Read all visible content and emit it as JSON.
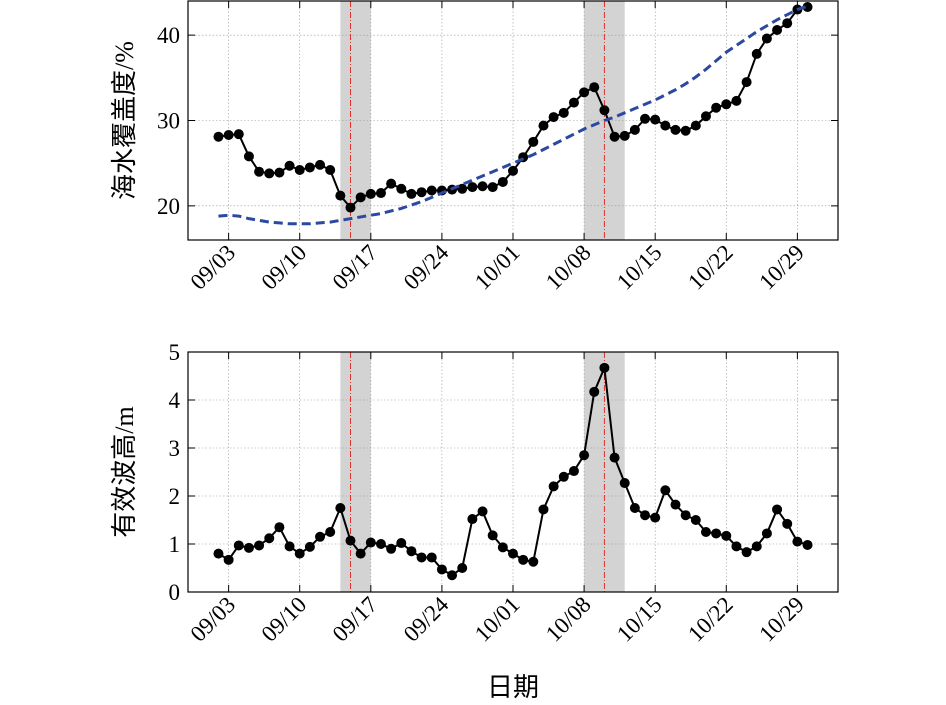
{
  "chart_data": [
    {
      "type": "line",
      "ylabel": "海水覆盖度/%",
      "x": [
        "09/02",
        "09/03",
        "09/04",
        "09/05",
        "09/06",
        "09/07",
        "09/08",
        "09/09",
        "09/10",
        "09/11",
        "09/12",
        "09/13",
        "09/14",
        "09/15",
        "09/16",
        "09/17",
        "09/18",
        "09/19",
        "09/20",
        "09/21",
        "09/22",
        "09/23",
        "09/24",
        "09/25",
        "09/26",
        "09/27",
        "09/28",
        "09/29",
        "09/30",
        "10/01",
        "10/02",
        "10/03",
        "10/04",
        "10/05",
        "10/06",
        "10/07",
        "10/08",
        "10/09",
        "10/10",
        "10/11",
        "10/12",
        "10/13",
        "10/14",
        "10/15",
        "10/16",
        "10/17",
        "10/18",
        "10/19",
        "10/20",
        "10/21",
        "10/22",
        "10/23",
        "10/24",
        "10/25",
        "10/26",
        "10/27",
        "10/28",
        "10/29",
        "10/30"
      ],
      "series": [
        {
          "color": "#000000",
          "style": "solid-marker",
          "values": [
            28.1,
            28.3,
            28.4,
            25.8,
            24.0,
            23.8,
            23.9,
            24.7,
            24.2,
            24.5,
            24.8,
            24.2,
            21.2,
            19.8,
            21.0,
            21.4,
            21.5,
            22.6,
            22.0,
            21.4,
            21.6,
            21.8,
            21.8,
            21.9,
            22.0,
            22.2,
            22.3,
            22.2,
            22.8,
            24.1,
            25.7,
            27.5,
            29.4,
            30.4,
            30.9,
            32.1,
            33.3,
            33.9,
            31.2,
            28.1,
            28.2,
            28.9,
            30.2,
            30.1,
            29.4,
            28.9,
            28.8,
            29.4,
            30.5,
            31.5,
            31.9,
            32.3,
            34.5,
            37.8,
            39.6,
            40.6,
            41.4,
            43.0,
            43.3
          ]
        },
        {
          "color": "#2c48a0",
          "style": "dashed",
          "values": [
            18.8,
            18.9,
            18.8,
            18.5,
            18.3,
            18.1,
            18.0,
            17.9,
            17.9,
            17.9,
            18.0,
            18.1,
            18.3,
            18.5,
            18.7,
            18.9,
            19.1,
            19.4,
            19.7,
            20.1,
            20.5,
            21.0,
            21.5,
            22.0,
            22.5,
            23.0,
            23.5,
            24.0,
            24.5,
            25.0,
            25.5,
            26.0,
            26.6,
            27.2,
            27.8,
            28.4,
            29.0,
            29.5,
            30.0,
            30.4,
            30.9,
            31.4,
            31.9,
            32.4,
            33.0,
            33.6,
            34.3,
            35.1,
            36.0,
            37.0,
            38.0,
            38.8,
            39.6,
            40.4,
            41.1,
            41.8,
            42.4,
            43.0,
            43.4
          ]
        }
      ],
      "xlim": [
        "08/30",
        "11/02"
      ],
      "xticks": [
        "09/03",
        "09/10",
        "09/17",
        "09/24",
        "10/01",
        "10/08",
        "10/15",
        "10/22",
        "10/29"
      ],
      "ylim": [
        16,
        44
      ],
      "yticks": [
        20,
        30,
        40
      ],
      "grid": true,
      "spans": [
        [
          "09/14",
          "09/17"
        ],
        [
          "10/08",
          "10/12"
        ]
      ],
      "span_color": "#d3d3d3",
      "vlines": [
        "09/15",
        "10/10"
      ],
      "vline_color": "#e0302a"
    },
    {
      "type": "line",
      "ylabel": "有效波高/m",
      "xlabel": "日期",
      "x": [
        "09/02",
        "09/03",
        "09/04",
        "09/05",
        "09/06",
        "09/07",
        "09/08",
        "09/09",
        "09/10",
        "09/11",
        "09/12",
        "09/13",
        "09/14",
        "09/15",
        "09/16",
        "09/17",
        "09/18",
        "09/19",
        "09/20",
        "09/21",
        "09/22",
        "09/23",
        "09/24",
        "09/25",
        "09/26",
        "09/27",
        "09/28",
        "09/29",
        "09/30",
        "10/01",
        "10/02",
        "10/03",
        "10/04",
        "10/05",
        "10/06",
        "10/07",
        "10/08",
        "10/09",
        "10/10",
        "10/11",
        "10/12",
        "10/13",
        "10/14",
        "10/15",
        "10/16",
        "10/17",
        "10/18",
        "10/19",
        "10/20",
        "10/21",
        "10/22",
        "10/23",
        "10/24",
        "10/25",
        "10/26",
        "10/27",
        "10/28",
        "10/29",
        "10/30"
      ],
      "series": [
        {
          "color": "#000000",
          "style": "solid-marker",
          "values": [
            0.8,
            0.67,
            0.97,
            0.92,
            0.97,
            1.12,
            1.35,
            0.95,
            0.8,
            0.94,
            1.15,
            1.25,
            1.75,
            1.07,
            0.8,
            1.03,
            1.0,
            0.9,
            1.02,
            0.85,
            0.72,
            0.72,
            0.47,
            0.35,
            0.5,
            1.52,
            1.68,
            1.18,
            0.93,
            0.8,
            0.67,
            0.63,
            1.72,
            2.2,
            2.4,
            2.52,
            2.85,
            4.17,
            4.67,
            2.8,
            2.27,
            1.75,
            1.6,
            1.55,
            2.12,
            1.82,
            1.6,
            1.5,
            1.25,
            1.22,
            1.17,
            0.95,
            0.83,
            0.95,
            1.22,
            1.72,
            1.42,
            1.05,
            0.98
          ]
        }
      ],
      "xlim": [
        "08/30",
        "11/02"
      ],
      "xticks": [
        "09/03",
        "09/10",
        "09/17",
        "09/24",
        "10/01",
        "10/08",
        "10/15",
        "10/22",
        "10/29"
      ],
      "ylim": [
        0,
        5
      ],
      "yticks": [
        0,
        1,
        2,
        3,
        4,
        5
      ],
      "grid": true,
      "spans": [
        [
          "09/14",
          "09/17"
        ],
        [
          "10/08",
          "10/12"
        ]
      ],
      "span_color": "#d3d3d3",
      "vlines": [
        "09/15",
        "10/10"
      ],
      "vline_color": "#e0302a"
    }
  ]
}
